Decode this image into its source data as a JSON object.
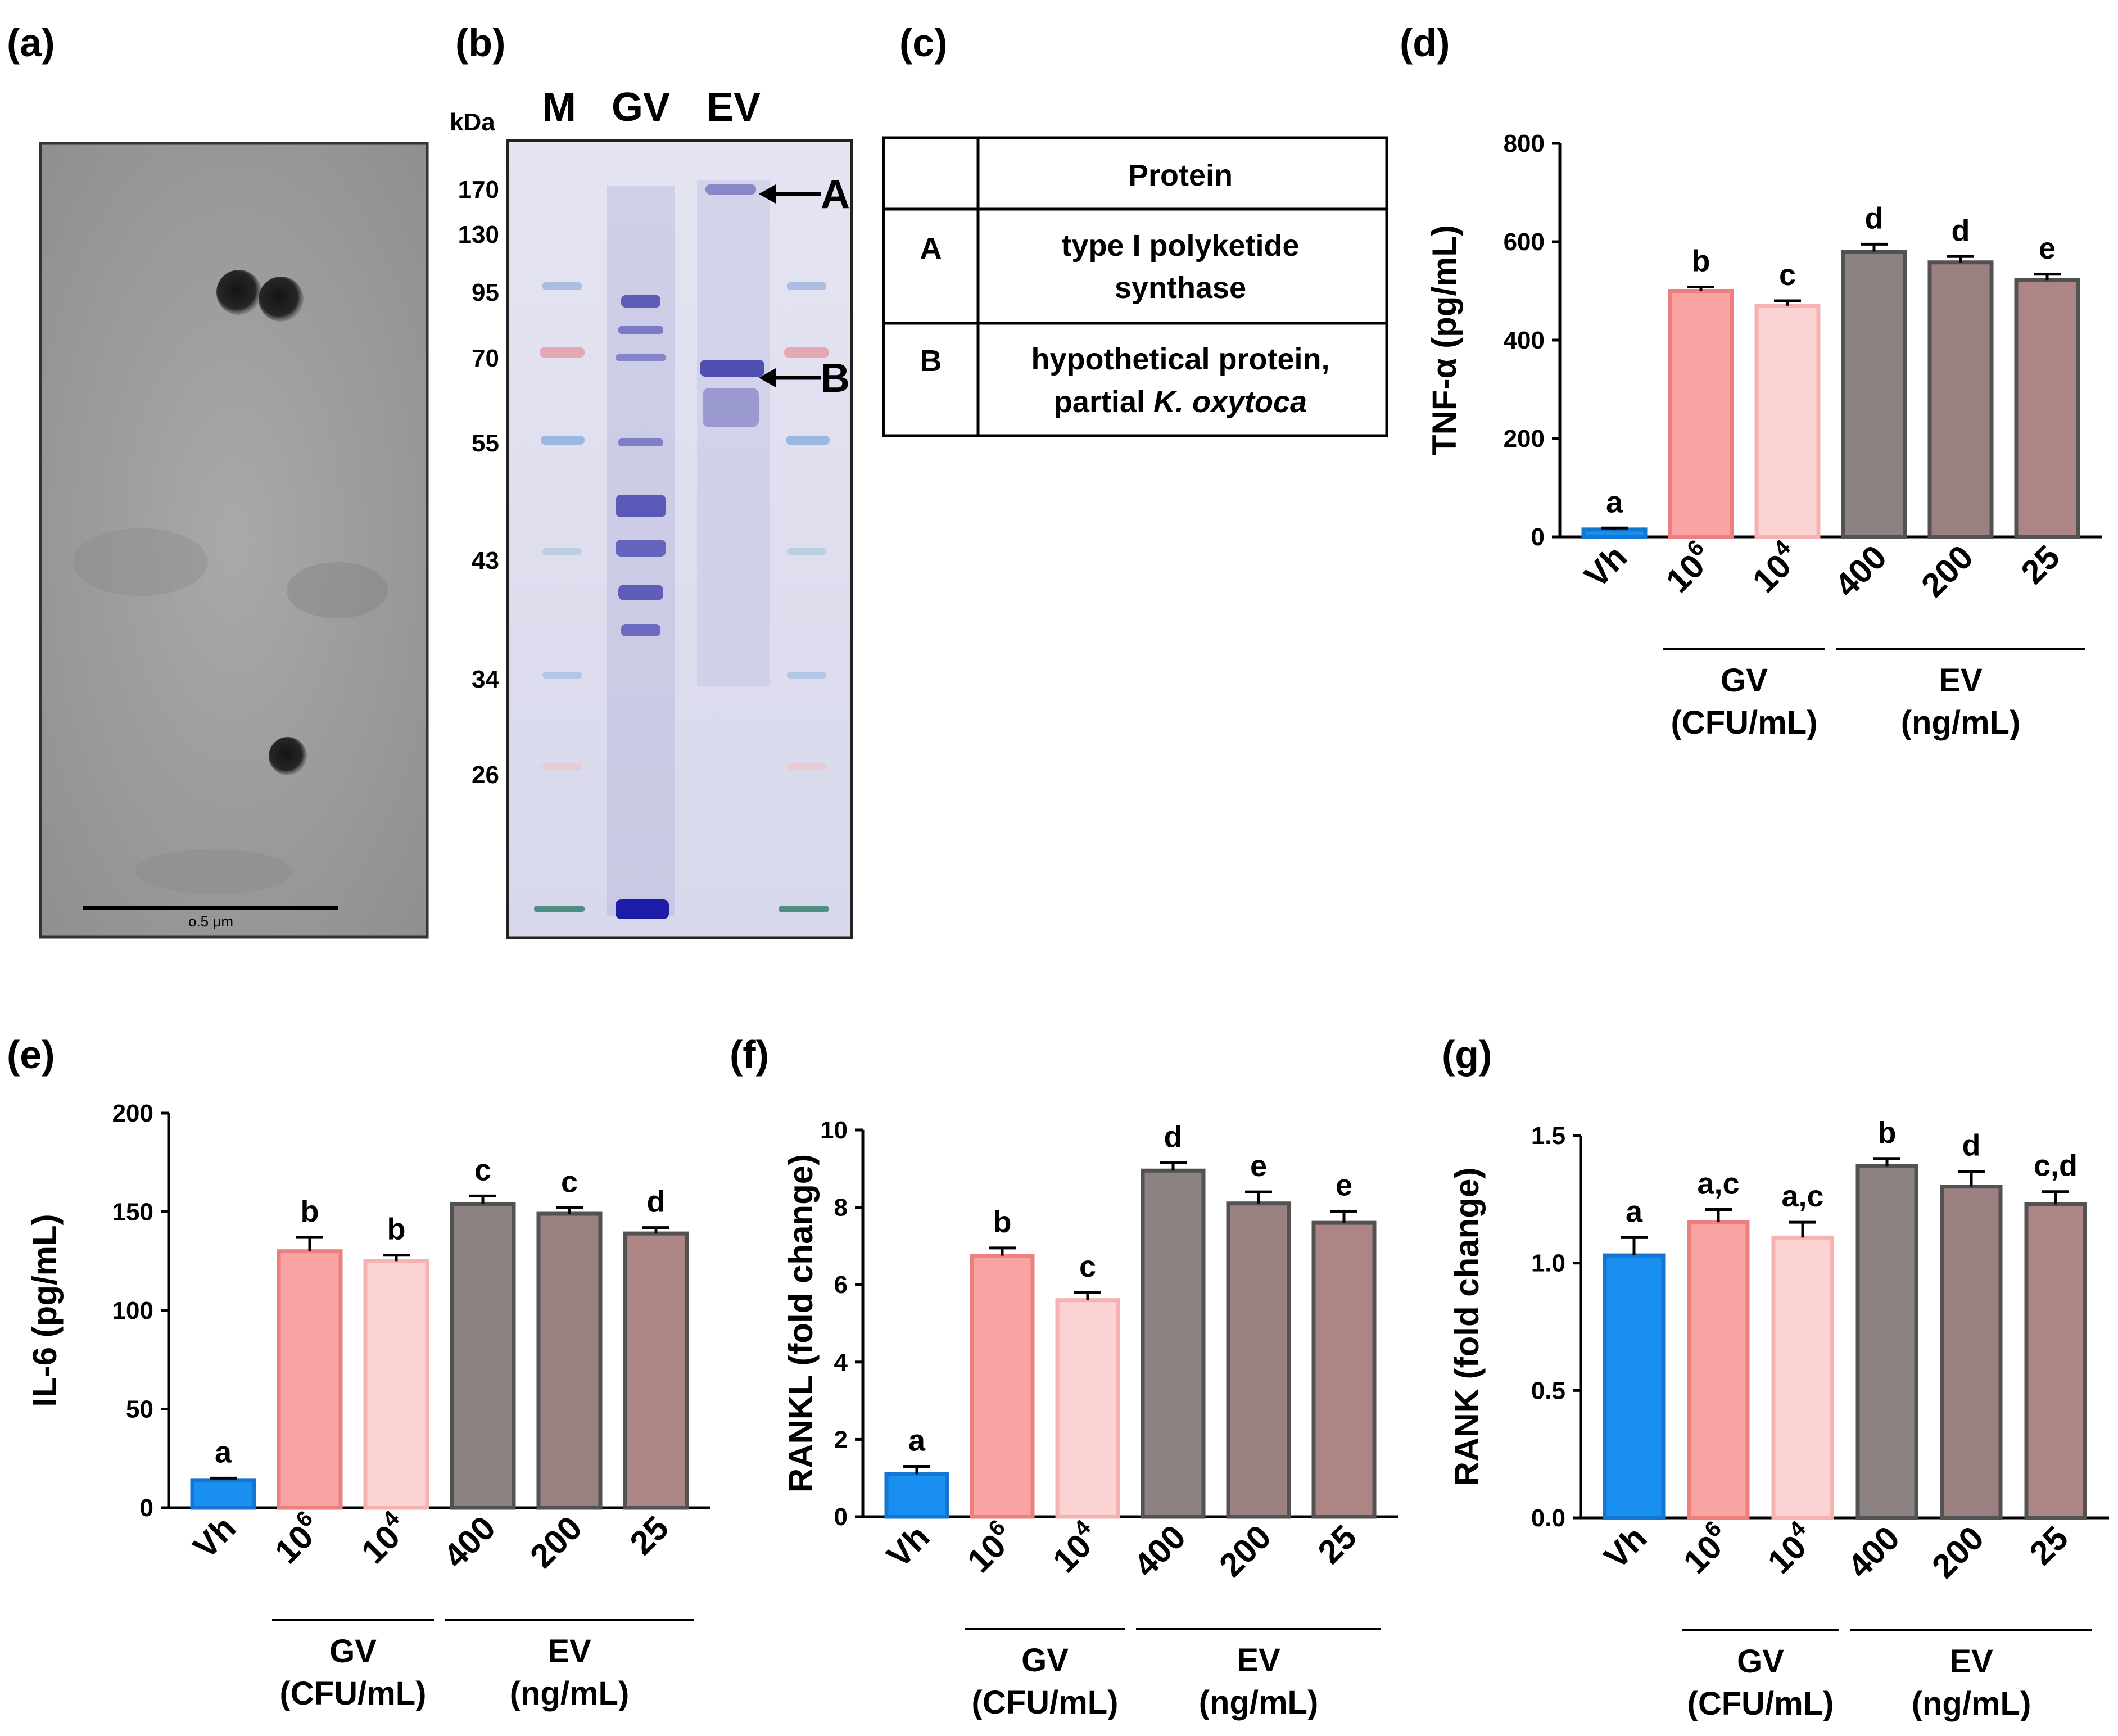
{
  "panel_labels": {
    "a": "(a)",
    "b": "(b)",
    "c": "(c)",
    "d": "(d)",
    "e": "(e)",
    "f": "(f)",
    "g": "(g)"
  },
  "tem": {
    "scale_bar_label": "o.5 μm"
  },
  "gel": {
    "kda_label": "kDa",
    "lanes": [
      "M",
      "GV",
      "EV"
    ],
    "markers": [
      "170",
      "130",
      "95",
      "70",
      "55",
      "43",
      "34",
      "26"
    ],
    "arrows": [
      "A",
      "B"
    ]
  },
  "protein_table": {
    "header": "Protein",
    "rows": [
      {
        "id": "A",
        "line1": "type I polyketide",
        "line2": "synthase",
        "species": ""
      },
      {
        "id": "B",
        "line1": "hypothetical protein,",
        "line2": "partial ",
        "species": "K. oxytoca"
      }
    ]
  },
  "colors": {
    "Vh": "#1a8ff2",
    "GV_1e6": "#f9a3a3",
    "GV_1e4": "#fbd3d3",
    "EV_400": "#8c8282",
    "EV_200": "#9a8080",
    "EV_25": "#ad8585",
    "edge_blue": "#1476d0",
    "edge_pink": "#ee7f7f",
    "edge_lightpink": "#f6b1b1",
    "edge_gray": "#525252"
  },
  "chart_data": [
    {
      "id": "d",
      "type": "bar",
      "ylabel": "TNF-α (pg/mL)",
      "ylim": [
        0,
        800
      ],
      "yticks": [
        "0",
        "200",
        "400",
        "600",
        "800"
      ],
      "categories": [
        "Vh",
        "10^6",
        "10^4",
        "400",
        "200",
        "25"
      ],
      "values": [
        15,
        500,
        470,
        580,
        558,
        522
      ],
      "errors": [
        3,
        8,
        10,
        15,
        12,
        12
      ],
      "significance": [
        "a",
        "b",
        "c",
        "d",
        "d",
        "e"
      ],
      "groups": [
        {
          "name": "GV",
          "unit": "(CFU/mL)"
        },
        {
          "name": "EV",
          "unit": "(ng/mL)"
        }
      ]
    },
    {
      "id": "e",
      "type": "bar",
      "ylabel": "IL-6 (pg/mL)",
      "ylim": [
        0,
        200
      ],
      "yticks": [
        "0",
        "50",
        "100",
        "150",
        "200"
      ],
      "categories": [
        "Vh",
        "10^6",
        "10^4",
        "400",
        "200",
        "25"
      ],
      "values": [
        14,
        130,
        125,
        154,
        149,
        139
      ],
      "errors": [
        1,
        7,
        3,
        4,
        3,
        3
      ],
      "significance": [
        "a",
        "b",
        "b",
        "c",
        "c",
        "d"
      ],
      "groups": [
        {
          "name": "GV",
          "unit": "(CFU/mL)"
        },
        {
          "name": "EV",
          "unit": "(ng/mL)"
        }
      ]
    },
    {
      "id": "f",
      "type": "bar",
      "ylabel": "RANKL (fold change)",
      "ylim": [
        0,
        10
      ],
      "yticks": [
        "0",
        "2",
        "4",
        "6",
        "8",
        "10"
      ],
      "categories": [
        "Vh",
        "10^6",
        "10^4",
        "400",
        "200",
        "25"
      ],
      "values": [
        1.1,
        6.75,
        5.6,
        8.95,
        8.1,
        7.6
      ],
      "errors": [
        0.2,
        0.2,
        0.2,
        0.2,
        0.3,
        0.3
      ],
      "significance": [
        "a",
        "b",
        "c",
        "d",
        "e",
        "e"
      ],
      "groups": [
        {
          "name": "GV",
          "unit": "(CFU/mL)"
        },
        {
          "name": "EV",
          "unit": "(ng/mL)"
        }
      ]
    },
    {
      "id": "g",
      "type": "bar",
      "ylabel": "RANK (fold change)",
      "ylim": [
        0,
        1.5
      ],
      "yticks": [
        "0.0",
        "0.5",
        "1.0",
        "1.5"
      ],
      "categories": [
        "Vh",
        "10^6",
        "10^4",
        "400",
        "200",
        "25"
      ],
      "values": [
        1.03,
        1.16,
        1.1,
        1.38,
        1.3,
        1.23
      ],
      "errors": [
        0.07,
        0.05,
        0.06,
        0.03,
        0.06,
        0.05
      ],
      "significance": [
        "a",
        "a,c",
        "a,c",
        "b",
        "d",
        "c,d"
      ],
      "groups": [
        {
          "name": "GV",
          "unit": "(CFU/mL)"
        },
        {
          "name": "EV",
          "unit": "(ng/mL)"
        }
      ]
    }
  ]
}
